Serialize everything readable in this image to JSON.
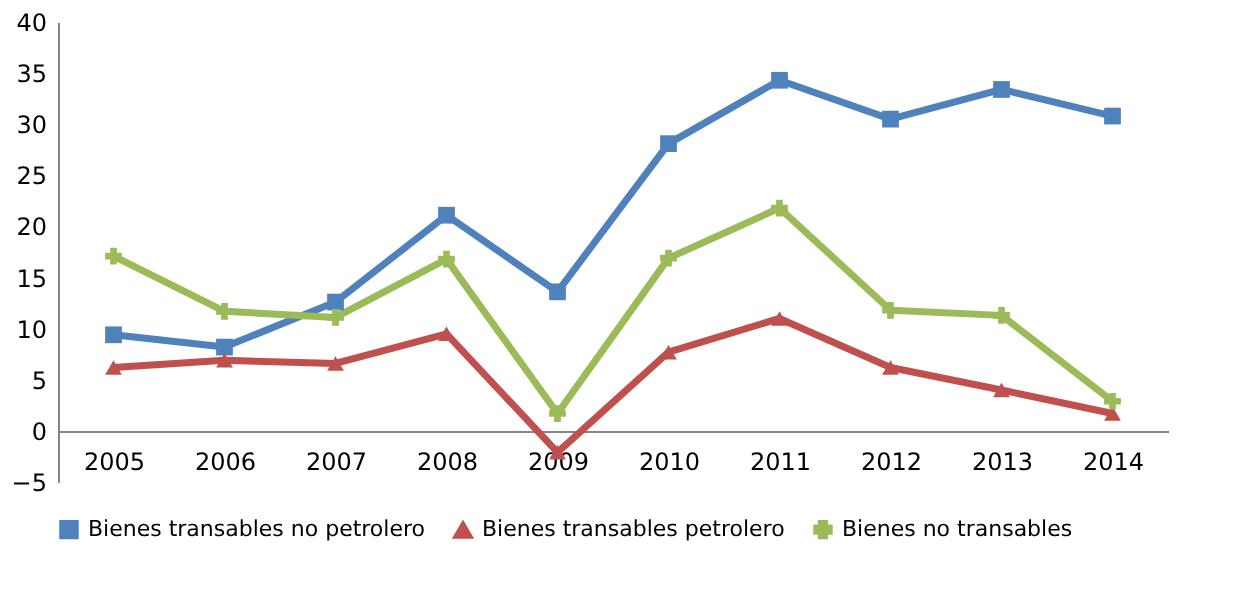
{
  "chart_data": {
    "type": "line",
    "categories": [
      "2005",
      "2006",
      "2007",
      "2008",
      "2009",
      "2010",
      "2011",
      "2012",
      "2013",
      "2014"
    ],
    "series": [
      {
        "name": "Bienes transables no petrolero",
        "color": "#4f81bd",
        "marker": "square",
        "values": [
          9.4,
          8.2,
          12.6,
          21.1,
          13.6,
          28.1,
          34.3,
          30.5,
          33.4,
          30.8
        ]
      },
      {
        "name": "Bienes transables petrolero",
        "color": "#c0504d",
        "marker": "triangle",
        "values": [
          6.2,
          6.9,
          6.6,
          9.5,
          -2.1,
          7.7,
          11.0,
          6.2,
          4.0,
          1.7
        ]
      },
      {
        "name": "Bienes no transables",
        "color": "#9bbb59",
        "marker": "cross",
        "values": [
          17.1,
          11.7,
          11.1,
          16.8,
          1.7,
          16.9,
          21.8,
          11.8,
          11.3,
          2.9
        ]
      }
    ],
    "ylim": [
      -5,
      40
    ],
    "yticks": [
      -5,
      0,
      5,
      10,
      15,
      20,
      25,
      30,
      35,
      40
    ],
    "grid": false,
    "legend": "bottom",
    "line_style": "solid"
  }
}
